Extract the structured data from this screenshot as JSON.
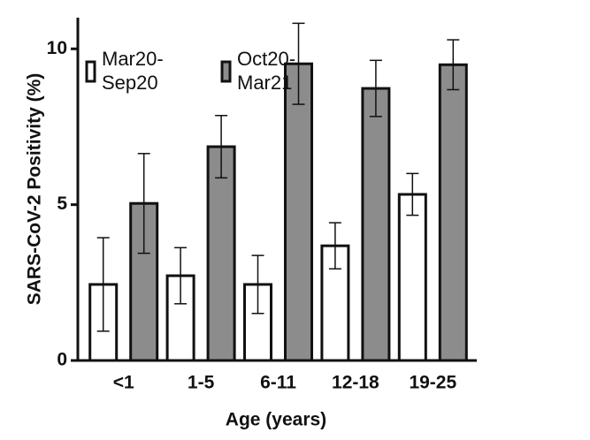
{
  "chart_data": {
    "type": "bar",
    "x_label": "Age (years)",
    "y_label": "SARS-CoV-2 Positivity  (%)",
    "categories": [
      "<1",
      "1-5",
      "6-11",
      "12-18",
      "19-25"
    ],
    "series": [
      {
        "name": "Mar20- Sep20",
        "color": "#ffffff",
        "values": [
          2.44,
          2.72,
          2.44,
          3.68,
          5.33
        ],
        "errors": [
          1.5,
          0.9,
          0.93,
          0.74,
          0.67
        ]
      },
      {
        "name": "Oct20- Mar21",
        "color": "#8c8c8c",
        "values": [
          5.04,
          6.86,
          9.52,
          8.73,
          9.49
        ],
        "errors": [
          1.6,
          1.0,
          1.3,
          0.9,
          0.8
        ]
      }
    ],
    "ylim": [
      0,
      11
    ],
    "yticks": [
      0,
      5,
      10
    ]
  }
}
